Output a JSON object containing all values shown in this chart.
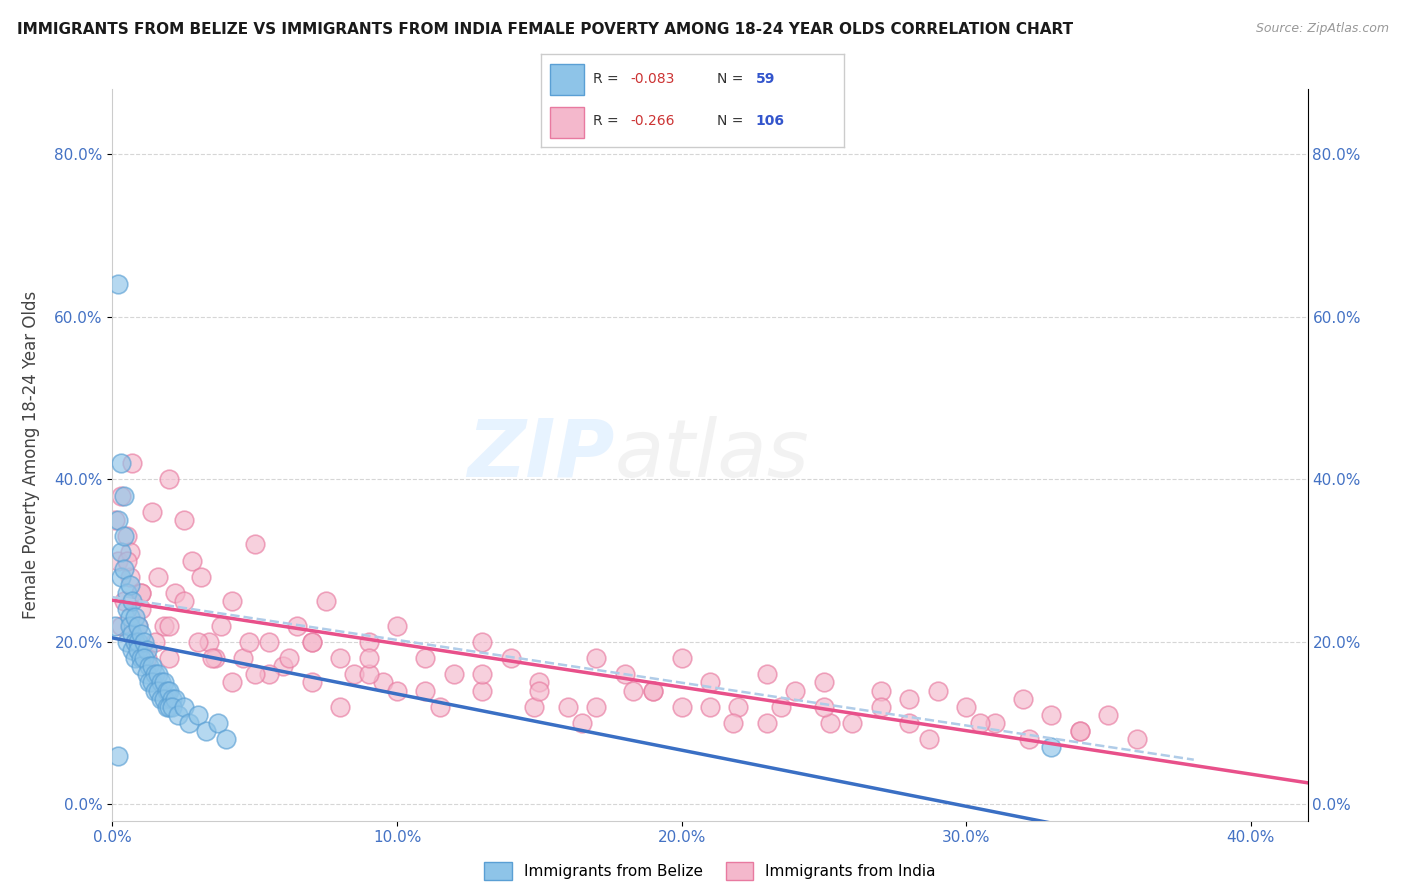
{
  "title": "IMMIGRANTS FROM BELIZE VS IMMIGRANTS FROM INDIA FEMALE POVERTY AMONG 18-24 YEAR OLDS CORRELATION CHART",
  "source": "Source: ZipAtlas.com",
  "ylabel": "Female Poverty Among 18-24 Year Olds",
  "ytick_vals": [
    0.0,
    0.2,
    0.4,
    0.6,
    0.8
  ],
  "ytick_labels": [
    "0.0%",
    "20.0%",
    "40.0%",
    "60.0%",
    "80.0%"
  ],
  "xtick_vals": [
    0.0,
    0.1,
    0.2,
    0.3,
    0.4
  ],
  "xtick_labels": [
    "0.0%",
    "10.0%",
    "20.0%",
    "30.0%",
    "40.0%"
  ],
  "xlim": [
    0.0,
    0.42
  ],
  "ylim": [
    -0.02,
    0.88
  ],
  "color_belize": "#8ec4e8",
  "color_belize_edge": "#5a9fd4",
  "color_india": "#f4b8cc",
  "color_india_edge": "#e87aa0",
  "color_belize_line": "#3a6fc4",
  "color_india_line": "#e8508a",
  "color_belize_dashed": "#b0cce8",
  "background_color": "#ffffff",
  "watermark_zip": "ZIP",
  "watermark_atlas": "atlas",
  "legend_belize_R": "-0.083",
  "legend_belize_N": "59",
  "legend_india_R": "-0.266",
  "legend_india_N": "106",
  "belize_x": [
    0.002,
    0.001,
    0.003,
    0.002,
    0.003,
    0.004,
    0.003,
    0.004,
    0.005,
    0.004,
    0.005,
    0.006,
    0.005,
    0.006,
    0.007,
    0.006,
    0.007,
    0.008,
    0.007,
    0.008,
    0.009,
    0.008,
    0.009,
    0.01,
    0.009,
    0.01,
    0.011,
    0.01,
    0.012,
    0.011,
    0.013,
    0.012,
    0.014,
    0.013,
    0.015,
    0.014,
    0.016,
    0.015,
    0.017,
    0.016,
    0.018,
    0.017,
    0.019,
    0.018,
    0.02,
    0.019,
    0.021,
    0.02,
    0.022,
    0.021,
    0.023,
    0.025,
    0.027,
    0.03,
    0.033,
    0.037,
    0.04,
    0.33,
    0.002
  ],
  "belize_y": [
    0.64,
    0.22,
    0.28,
    0.35,
    0.42,
    0.38,
    0.31,
    0.33,
    0.26,
    0.29,
    0.24,
    0.27,
    0.2,
    0.23,
    0.25,
    0.22,
    0.21,
    0.23,
    0.19,
    0.2,
    0.22,
    0.18,
    0.2,
    0.21,
    0.19,
    0.18,
    0.2,
    0.17,
    0.19,
    0.18,
    0.17,
    0.16,
    0.17,
    0.15,
    0.16,
    0.15,
    0.16,
    0.14,
    0.15,
    0.14,
    0.15,
    0.13,
    0.14,
    0.13,
    0.14,
    0.12,
    0.13,
    0.12,
    0.13,
    0.12,
    0.11,
    0.12,
    0.1,
    0.11,
    0.09,
    0.1,
    0.08,
    0.07,
    0.06
  ],
  "india_x": [
    0.001,
    0.002,
    0.003,
    0.004,
    0.005,
    0.006,
    0.007,
    0.008,
    0.009,
    0.01,
    0.012,
    0.014,
    0.016,
    0.018,
    0.02,
    0.022,
    0.025,
    0.028,
    0.031,
    0.034,
    0.038,
    0.042,
    0.046,
    0.05,
    0.055,
    0.06,
    0.065,
    0.07,
    0.075,
    0.08,
    0.085,
    0.09,
    0.095,
    0.1,
    0.11,
    0.12,
    0.13,
    0.14,
    0.15,
    0.16,
    0.17,
    0.18,
    0.19,
    0.2,
    0.21,
    0.22,
    0.23,
    0.24,
    0.25,
    0.26,
    0.27,
    0.28,
    0.29,
    0.3,
    0.31,
    0.32,
    0.33,
    0.34,
    0.35,
    0.36,
    0.003,
    0.006,
    0.01,
    0.015,
    0.02,
    0.025,
    0.03,
    0.036,
    0.042,
    0.048,
    0.055,
    0.062,
    0.07,
    0.08,
    0.09,
    0.1,
    0.115,
    0.13,
    0.148,
    0.165,
    0.183,
    0.2,
    0.218,
    0.235,
    0.252,
    0.27,
    0.287,
    0.305,
    0.322,
    0.34,
    0.005,
    0.01,
    0.02,
    0.035,
    0.05,
    0.07,
    0.09,
    0.11,
    0.13,
    0.15,
    0.17,
    0.19,
    0.21,
    0.23,
    0.25,
    0.28
  ],
  "india_y": [
    0.35,
    0.3,
    0.38,
    0.25,
    0.33,
    0.31,
    0.42,
    0.2,
    0.22,
    0.26,
    0.18,
    0.36,
    0.28,
    0.22,
    0.4,
    0.26,
    0.35,
    0.3,
    0.28,
    0.2,
    0.22,
    0.25,
    0.18,
    0.32,
    0.2,
    0.17,
    0.22,
    0.2,
    0.25,
    0.18,
    0.16,
    0.2,
    0.15,
    0.22,
    0.18,
    0.16,
    0.2,
    0.18,
    0.15,
    0.12,
    0.18,
    0.16,
    0.14,
    0.18,
    0.15,
    0.12,
    0.16,
    0.14,
    0.15,
    0.1,
    0.14,
    0.13,
    0.14,
    0.12,
    0.1,
    0.13,
    0.11,
    0.09,
    0.11,
    0.08,
    0.22,
    0.28,
    0.24,
    0.2,
    0.18,
    0.25,
    0.2,
    0.18,
    0.15,
    0.2,
    0.16,
    0.18,
    0.15,
    0.12,
    0.16,
    0.14,
    0.12,
    0.14,
    0.12,
    0.1,
    0.14,
    0.12,
    0.1,
    0.12,
    0.1,
    0.12,
    0.08,
    0.1,
    0.08,
    0.09,
    0.3,
    0.26,
    0.22,
    0.18,
    0.16,
    0.2,
    0.18,
    0.14,
    0.16,
    0.14,
    0.12,
    0.14,
    0.12,
    0.1,
    0.12,
    0.1
  ]
}
